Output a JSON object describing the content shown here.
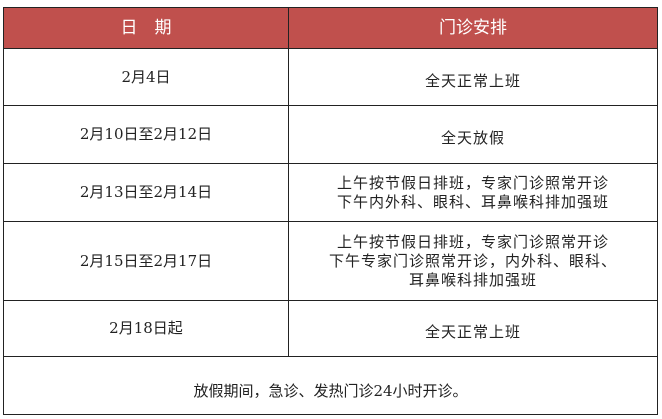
{
  "header": {
    "date": "日　期",
    "arrangement": "门诊安排"
  },
  "header_color": "#c0504d",
  "rows": [
    {
      "date": "2月4日",
      "lines": [
        "全天正常上班"
      ]
    },
    {
      "date": "2月10日至2月12日",
      "lines": [
        "全天放假"
      ]
    },
    {
      "date": "2月13日至2月14日",
      "lines": [
        "上午按节假日排班，专家门诊照常开诊",
        "下午内外科、眼科、耳鼻喉科排加强班"
      ]
    },
    {
      "date": "2月15日至2月17日",
      "lines": [
        "上午按节假日排班，专家门诊照常开诊",
        "下午专家门诊照常开诊，内外科、眼科、",
        "耳鼻喉科排加强班"
      ]
    },
    {
      "date": "2月18日起",
      "lines": [
        "全天正常上班"
      ]
    }
  ],
  "note": "放假期间，急诊、发热门诊24小时开诊。"
}
